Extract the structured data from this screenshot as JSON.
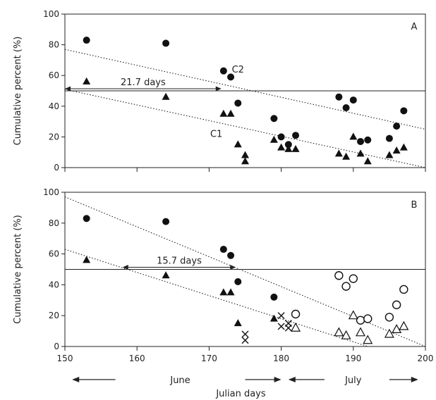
{
  "chart_data": [
    {
      "panel": "A",
      "type": "scatter",
      "xlabel": "",
      "ylabel": "Cumulative percent (%)",
      "xlim": [
        150,
        200
      ],
      "ylim": [
        0,
        100
      ],
      "xticks": [
        "",
        "",
        "",
        "",
        "",
        ""
      ],
      "yticks": [
        "0",
        "20",
        "40",
        "60",
        "80",
        "100"
      ],
      "reference_line_y": 50,
      "series": [
        {
          "name": "C2",
          "marker": "filled-circle",
          "points": [
            [
              153,
              83
            ],
            [
              164,
              81
            ],
            [
              172,
              63
            ],
            [
              173,
              59
            ],
            [
              174,
              42
            ],
            [
              179,
              32
            ],
            [
              180,
              20
            ],
            [
              181,
              15
            ],
            [
              182,
              21
            ],
            [
              188,
              46
            ],
            [
              189,
              39
            ],
            [
              190,
              44
            ],
            [
              191,
              17
            ],
            [
              192,
              18
            ],
            [
              195,
              19
            ],
            [
              196,
              27
            ],
            [
              197,
              37
            ]
          ]
        },
        {
          "name": "C1",
          "marker": "filled-triangle",
          "points": [
            [
              153,
              56
            ],
            [
              164,
              46
            ],
            [
              172,
              35
            ],
            [
              173,
              35
            ],
            [
              174,
              15
            ],
            [
              175,
              8
            ],
            [
              175,
              4
            ],
            [
              179,
              18
            ],
            [
              180,
              13
            ],
            [
              181,
              12
            ],
            [
              182,
              12
            ],
            [
              188,
              9
            ],
            [
              189,
              7
            ],
            [
              190,
              20
            ],
            [
              191,
              9
            ],
            [
              192,
              4
            ],
            [
              195,
              8
            ],
            [
              196,
              11
            ],
            [
              197,
              13
            ]
          ]
        }
      ],
      "trend_lines": [
        {
          "series": "C2",
          "x": [
            150,
            200
          ],
          "y": [
            77,
            25
          ]
        },
        {
          "series": "C1",
          "x": [
            150,
            200
          ],
          "y": [
            51,
            0
          ]
        }
      ],
      "annotations": [
        {
          "text": "21.7 days",
          "arrow_from": 150,
          "arrow_to": 171.7,
          "y": 50
        },
        {
          "text": "C2",
          "x": 174,
          "y": 62
        },
        {
          "text": "C1",
          "x": 171,
          "y": 20
        }
      ]
    },
    {
      "panel": "B",
      "type": "scatter",
      "xlabel": "Julian days",
      "ylabel": "Cumulative percent (%)",
      "xlim": [
        150,
        200
      ],
      "ylim": [
        0,
        100
      ],
      "xticks": [
        "150",
        "160",
        "170",
        "180",
        "190",
        "200"
      ],
      "yticks": [
        "0",
        "20",
        "40",
        "60",
        "80",
        "100"
      ],
      "reference_line_y": 50,
      "series": [
        {
          "marker": "filled-circle",
          "points": [
            [
              153,
              83
            ],
            [
              164,
              81
            ],
            [
              172,
              63
            ],
            [
              173,
              59
            ],
            [
              174,
              42
            ],
            [
              179,
              32
            ]
          ]
        },
        {
          "marker": "filled-triangle",
          "points": [
            [
              153,
              56
            ],
            [
              164,
              46
            ],
            [
              172,
              35
            ],
            [
              173,
              35
            ],
            [
              174,
              15
            ],
            [
              179,
              18
            ]
          ]
        },
        {
          "marker": "cross",
          "points": [
            [
              175,
              8
            ],
            [
              175,
              4
            ],
            [
              180,
              20
            ],
            [
              180,
              13
            ],
            [
              181,
              15
            ],
            [
              181,
              12
            ]
          ]
        },
        {
          "marker": "open-circle",
          "points": [
            [
              182,
              21
            ],
            [
              188,
              46
            ],
            [
              189,
              39
            ],
            [
              190,
              44
            ],
            [
              191,
              17
            ],
            [
              192,
              18
            ],
            [
              195,
              19
            ],
            [
              196,
              27
            ],
            [
              197,
              37
            ]
          ]
        },
        {
          "marker": "open-triangle",
          "points": [
            [
              182,
              12
            ],
            [
              188,
              9
            ],
            [
              189,
              7
            ],
            [
              190,
              20
            ],
            [
              191,
              9
            ],
            [
              192,
              4
            ],
            [
              195,
              8
            ],
            [
              196,
              11
            ],
            [
              197,
              13
            ]
          ]
        }
      ],
      "trend_lines": [
        {
          "x": [
            150,
            200
          ],
          "y": [
            97,
            0
          ]
        },
        {
          "x": [
            150,
            192
          ],
          "y": [
            63,
            0
          ]
        }
      ],
      "annotations": [
        {
          "text": "15.7 days",
          "arrow_from": 158,
          "arrow_to": 173.7,
          "y": 50
        }
      ]
    }
  ],
  "months": [
    {
      "label": "June",
      "center": 166,
      "arrow_left": [
        151,
        157
      ],
      "arrow_right": [
        175,
        180
      ]
    },
    {
      "label": "July",
      "center": 190,
      "arrow_left": [
        181,
        186
      ],
      "arrow_right": [
        195,
        199
      ]
    }
  ]
}
